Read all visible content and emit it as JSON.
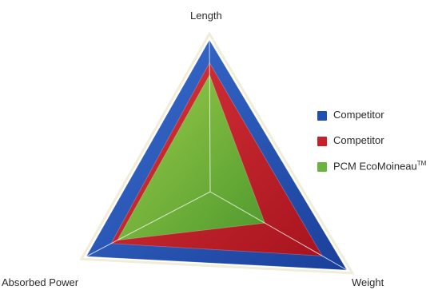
{
  "chart_data": {
    "type": "radar",
    "axes": [
      "Length",
      "Weight",
      "Absorbed Power"
    ],
    "rmax": 1,
    "series": [
      {
        "name": "Competitor",
        "color": "#1f4fb0",
        "values": [
          1.0,
          1.0,
          1.0
        ]
      },
      {
        "name": "Competitor",
        "color": "#c8202a",
        "values": [
          0.85,
          0.82,
          0.8
        ]
      },
      {
        "name": "PCM EcoMoineau",
        "name_suffix": "TM",
        "color": "#6db33f",
        "values": [
          0.77,
          0.4,
          0.75
        ]
      }
    ],
    "outline_color": "#f0edd8",
    "spoke_color": "#ffffff"
  }
}
